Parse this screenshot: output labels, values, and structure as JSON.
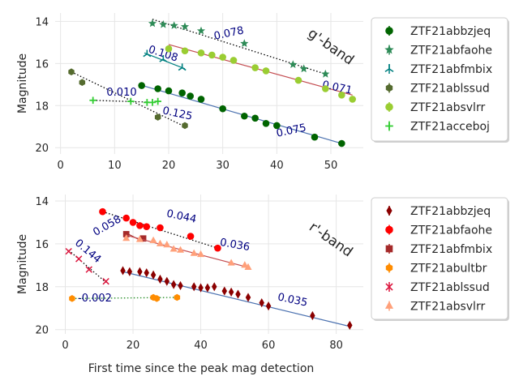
{
  "chart_data": [
    {
      "type": "scatter",
      "band_label": "g'-band",
      "xlabel": "",
      "ylabel": "Magnitude",
      "xlim": [
        -1,
        56
      ],
      "ylim": [
        20.3,
        13.6
      ],
      "y_inverted": true,
      "grid": true,
      "xticks": [
        0,
        10,
        20,
        30,
        40,
        50
      ],
      "yticks": [
        14,
        16,
        18,
        20
      ],
      "legend_position": "outside-right",
      "series": [
        {
          "name": "ZTF21abbzjeq",
          "marker": "circle",
          "color": "#006400",
          "x": [
            15,
            18,
            20,
            22.5,
            24,
            26,
            30,
            34,
            36,
            38,
            40,
            47,
            52
          ],
          "y": [
            17.05,
            17.2,
            17.3,
            17.4,
            17.55,
            17.7,
            18.15,
            18.5,
            18.6,
            18.85,
            18.95,
            19.5,
            19.8
          ],
          "fit": {
            "x": [
              14.5,
              52
            ],
            "y": [
              17.0,
              19.8
            ],
            "color": "#4c72b0",
            "slope_label": "0.075"
          }
        },
        {
          "name": "ZTF21abfaohe",
          "marker": "star",
          "color": "#2e8b57",
          "x": [
            17,
            19,
            21,
            23,
            26,
            34,
            43,
            45,
            49
          ],
          "y": [
            14.1,
            14.15,
            14.2,
            14.25,
            14.45,
            15.05,
            16.05,
            16.25,
            16.5
          ],
          "fit": {
            "x": [
              17,
              49
            ],
            "y": [
              13.9,
              16.5
            ],
            "color": "#000000",
            "style": "dotted",
            "slope_label": "0.078"
          }
        },
        {
          "name": "ZTF21abfmbix",
          "marker": "tri",
          "color": "#008080",
          "x": [
            16,
            19,
            22.5
          ],
          "y": [
            15.55,
            15.8,
            16.2
          ],
          "fit": {
            "x": [
              15.5,
              23
            ],
            "y": [
              15.5,
              16.25
            ],
            "color": "#008080",
            "slope_label": "0.108"
          }
        },
        {
          "name": "ZTF21ablssud",
          "marker": "hex",
          "color": "#556b2f",
          "x": [
            2,
            4,
            18,
            23
          ],
          "y": [
            16.4,
            16.9,
            18.55,
            18.95
          ],
          "fit": {
            "x": [
              2,
              23
            ],
            "y": [
              16.4,
              19.0
            ],
            "color": "#000000",
            "style": "dotted",
            "slope_label": "0.125"
          }
        },
        {
          "name": "ZTF21absvlrr",
          "marker": "circle",
          "color": "#9acd32",
          "x": [
            20,
            23,
            26,
            28,
            30,
            32,
            36,
            38,
            44,
            49,
            52,
            54
          ],
          "y": [
            15.3,
            15.4,
            15.5,
            15.6,
            15.7,
            15.85,
            16.2,
            16.35,
            16.8,
            17.2,
            17.5,
            17.7
          ],
          "fit": {
            "x": [
              20,
              54
            ],
            "y": [
              15.1,
              17.5
            ],
            "color": "#c44e52",
            "slope_label": "0.071"
          }
        },
        {
          "name": "ZTF21acceboj",
          "marker": "plus",
          "color": "#32cd32",
          "x": [
            6,
            13,
            16,
            17,
            18
          ],
          "y": [
            17.75,
            17.8,
            17.85,
            17.85,
            17.8
          ],
          "fit": {
            "x": [
              6,
              18
            ],
            "y": [
              17.75,
              17.85
            ],
            "color": "#000000",
            "style": "dotted",
            "slope_label": "0.010"
          }
        }
      ]
    },
    {
      "type": "scatter",
      "band_label": "r'-band",
      "xlabel": "First time since the peak mag detection",
      "ylabel": "Magnitude",
      "xlim": [
        -3,
        88
      ],
      "ylim": [
        20.2,
        13.7
      ],
      "y_inverted": true,
      "grid": true,
      "xticks": [
        0,
        20,
        40,
        60,
        80
      ],
      "yticks": [
        14,
        16,
        18,
        20
      ],
      "legend_position": "outside-right",
      "series": [
        {
          "name": "ZTF21abbzjeq",
          "marker": "diamond",
          "color": "#8b0000",
          "x": [
            17,
            19,
            22,
            24,
            26,
            28,
            30,
            32,
            34,
            38,
            40,
            42,
            44,
            47,
            49,
            51,
            54,
            58,
            60,
            73,
            84
          ],
          "y": [
            17.25,
            17.3,
            17.3,
            17.35,
            17.45,
            17.65,
            17.75,
            17.9,
            17.95,
            18.0,
            18.05,
            18.05,
            18.0,
            18.2,
            18.25,
            18.35,
            18.5,
            18.75,
            18.9,
            19.35,
            19.8
          ],
          "fit": {
            "x": [
              17,
              84
            ],
            "y": [
              17.3,
              19.85
            ],
            "color": "#4c72b0",
            "slope_label": "0.035"
          }
        },
        {
          "name": "ZTF21abfaohe",
          "marker": "circle",
          "color": "#ff0000",
          "x": [
            11,
            18,
            20,
            22,
            24,
            28,
            37,
            45
          ],
          "y": [
            14.5,
            14.8,
            15.0,
            15.15,
            15.2,
            15.25,
            15.65,
            16.2
          ],
          "fit": {
            "x": [
              11,
              45
            ],
            "y": [
              14.5,
              16.2
            ],
            "color": "#000000",
            "style": "dotted",
            "slope_label": "0.044"
          }
        },
        {
          "name": "ZTF21abfmbix",
          "marker": "square",
          "color": "#a52a2a",
          "x": [
            18,
            23
          ],
          "y": [
            15.55,
            15.75
          ],
          "fit": {
            "x": [
              18,
              23
            ],
            "y": [
              15.5,
              15.9
            ],
            "color": "#a52a2a",
            "slope_label": "0.058"
          }
        },
        {
          "name": "ZTF21abultbr",
          "marker": "hex",
          "color": "#ff8c00",
          "x": [
            2,
            26,
            27,
            33
          ],
          "y": [
            18.55,
            18.5,
            18.55,
            18.5
          ],
          "fit": {
            "x": [
              2,
              33
            ],
            "y": [
              18.55,
              18.5
            ],
            "color": "#228b22",
            "style": "dotted",
            "slope_label": "-0.002"
          }
        },
        {
          "name": "ZTF21ablssud",
          "marker": "x",
          "color": "#dc143c",
          "x": [
            1,
            4,
            7,
            12
          ],
          "y": [
            16.35,
            16.7,
            17.2,
            17.75
          ],
          "fit": {
            "x": [
              1,
              12
            ],
            "y": [
              16.3,
              17.8
            ],
            "color": "#000000",
            "style": "dotted",
            "slope_label": "0.144"
          }
        },
        {
          "name": "ZTF21absvlrr",
          "marker": "triangle",
          "color": "#ffa07a",
          "x": [
            18,
            22,
            26,
            28,
            30,
            32,
            34,
            38,
            40,
            49,
            53,
            54
          ],
          "y": [
            15.75,
            15.8,
            15.85,
            16.0,
            16.05,
            16.25,
            16.3,
            16.45,
            16.5,
            16.9,
            17.0,
            17.1
          ],
          "fit": {
            "x": [
              18,
              54
            ],
            "y": [
              15.6,
              17.1
            ],
            "color": "#c44e52",
            "slope_label": "0.036"
          }
        }
      ]
    }
  ]
}
